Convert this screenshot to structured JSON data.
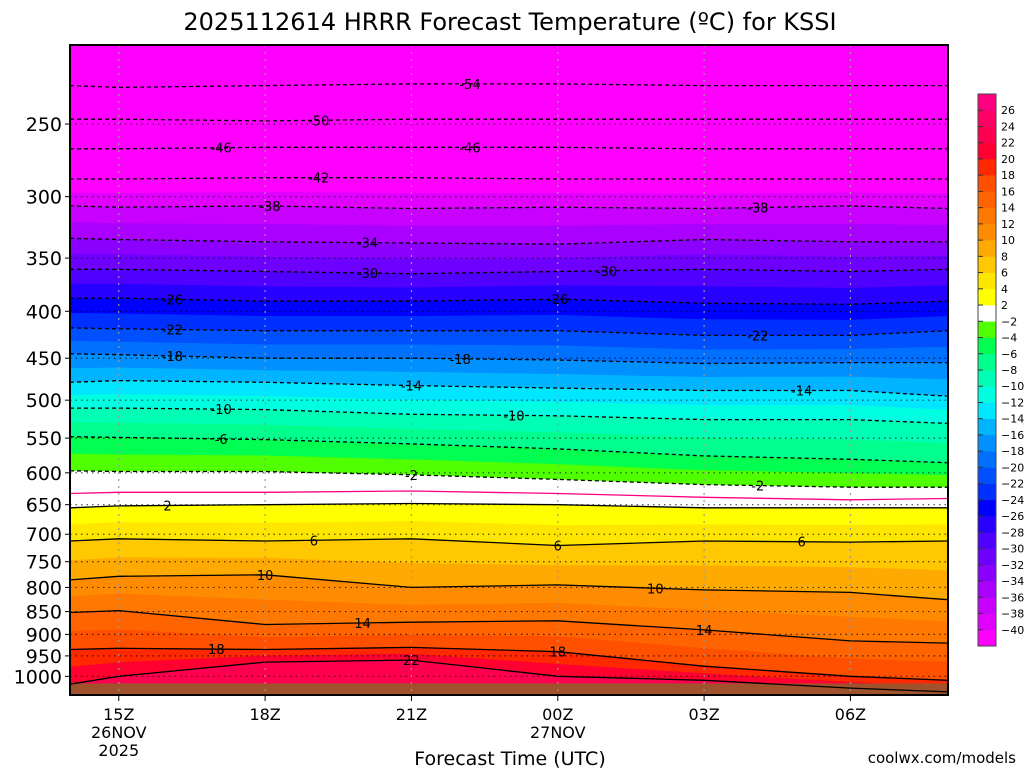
{
  "chart_data": {
    "type": "contour",
    "title": "2025112614 HRRR Forecast Temperature (ºC) for KSSI",
    "xlabel": "Forecast Time (UTC)",
    "ylabel": "",
    "watermark": "coolwx.com/models",
    "x_range_hours": [
      0,
      18
    ],
    "y_range_hpa": [
      205,
      1048
    ],
    "y_scale": "log",
    "y_ticks": [
      250,
      300,
      350,
      400,
      450,
      500,
      550,
      600,
      650,
      700,
      750,
      800,
      850,
      900,
      950,
      1000
    ],
    "x_ticks": [
      {
        "hour": 1,
        "lines": [
          "15Z",
          "26NOV",
          "2025"
        ]
      },
      {
        "hour": 4,
        "lines": [
          "18Z"
        ]
      },
      {
        "hour": 7,
        "lines": [
          "21Z"
        ]
      },
      {
        "hour": 10,
        "lines": [
          "00Z",
          "27NOV"
        ]
      },
      {
        "hour": 13,
        "lines": [
          "03Z"
        ]
      },
      {
        "hour": 16,
        "lines": [
          "06Z"
        ]
      }
    ],
    "surface_pressure_hpa": 1018,
    "surface_color": "#a0522d",
    "hours": [
      0,
      1,
      4,
      7,
      10,
      13,
      16,
      18
    ],
    "isotherms": [
      {
        "temp": -54,
        "pressure": [
          227,
          228,
          227,
          226,
          226,
          227,
          227,
          227
        ]
      },
      {
        "temp": -50,
        "pressure": [
          247,
          247,
          248,
          247,
          247,
          247,
          247,
          247
        ]
      },
      {
        "temp": -46,
        "pressure": [
          266,
          266,
          265,
          265,
          265,
          266,
          266,
          266
        ]
      },
      {
        "temp": -42,
        "pressure": [
          287,
          287,
          286,
          286,
          287,
          287,
          287,
          287
        ]
      },
      {
        "temp": -38,
        "pressure": [
          307,
          308,
          307,
          309,
          308,
          309,
          307,
          309
        ]
      },
      {
        "temp": -34,
        "pressure": [
          333,
          334,
          336,
          337,
          338,
          334,
          336,
          336
        ]
      },
      {
        "temp": -30,
        "pressure": [
          360,
          360,
          362,
          364,
          362,
          360,
          362,
          360
        ]
      },
      {
        "temp": -26,
        "pressure": [
          387,
          387,
          390,
          390,
          388,
          392,
          393,
          390
        ]
      },
      {
        "temp": -22,
        "pressure": [
          417,
          418,
          420,
          420,
          420,
          425,
          425,
          420
        ]
      },
      {
        "temp": -18,
        "pressure": [
          445,
          446,
          450,
          450,
          452,
          456,
          455,
          455
        ]
      },
      {
        "temp": -14,
        "pressure": [
          478,
          476,
          478,
          482,
          485,
          488,
          488,
          495
        ]
      },
      {
        "temp": -10,
        "pressure": [
          510,
          510,
          512,
          518,
          520,
          525,
          525,
          530
        ]
      },
      {
        "temp": -6,
        "pressure": [
          548,
          549,
          552,
          558,
          565,
          575,
          580,
          585
        ]
      },
      {
        "temp": -2,
        "pressure": [
          597,
          598,
          598,
          603,
          610,
          618,
          622,
          622
        ]
      },
      {
        "temp": 0,
        "pressure": [
          632,
          630,
          630,
          628,
          632,
          638,
          642,
          640
        ]
      },
      {
        "temp": 2,
        "pressure": [
          655,
          652,
          650,
          648,
          650,
          655,
          655,
          655
        ]
      },
      {
        "temp": 6,
        "pressure": [
          712,
          708,
          712,
          708,
          720,
          712,
          714,
          712
        ]
      },
      {
        "temp": 10,
        "pressure": [
          785,
          778,
          775,
          800,
          795,
          805,
          810,
          825
        ]
      },
      {
        "temp": 14,
        "pressure": [
          852,
          848,
          878,
          873,
          870,
          890,
          915,
          920
        ]
      },
      {
        "temp": 18,
        "pressure": [
          935,
          932,
          935,
          930,
          940,
          975,
          1000,
          1010
        ]
      },
      {
        "temp": 22,
        "pressure": [
          1020,
          1000,
          965,
          960,
          1000,
          1010,
          1030,
          1040
        ]
      }
    ],
    "contour_labels": [
      {
        "text": "-54",
        "temp": -54,
        "hour": 8.2
      },
      {
        "text": "-50",
        "temp": -50,
        "hour": 5.1
      },
      {
        "text": "-46",
        "temp": -46,
        "hour": 3.1
      },
      {
        "text": "-46",
        "temp": -46,
        "hour": 8.2
      },
      {
        "text": "-42",
        "temp": -42,
        "hour": 5.1
      },
      {
        "text": "-38",
        "temp": -38,
        "hour": 4.1
      },
      {
        "text": "-38",
        "temp": -38,
        "hour": 14.1
      },
      {
        "text": "-34",
        "temp": -34,
        "hour": 6.1
      },
      {
        "text": "-30",
        "temp": -30,
        "hour": 6.1
      },
      {
        "text": "-30",
        "temp": -30,
        "hour": 11.0
      },
      {
        "text": "-26",
        "temp": -26,
        "hour": 2.1
      },
      {
        "text": "-26",
        "temp": -26,
        "hour": 10.0
      },
      {
        "text": "-22",
        "temp": -22,
        "hour": 2.1
      },
      {
        "text": "-22",
        "temp": -22,
        "hour": 14.1
      },
      {
        "text": "-18",
        "temp": -18,
        "hour": 2.1
      },
      {
        "text": "-18",
        "temp": -18,
        "hour": 8.0
      },
      {
        "text": "-14",
        "temp": -14,
        "hour": 7.0
      },
      {
        "text": "-14",
        "temp": -14,
        "hour": 15.0
      },
      {
        "text": "-10",
        "temp": -10,
        "hour": 3.1
      },
      {
        "text": "-10",
        "temp": -10,
        "hour": 9.1
      },
      {
        "text": "-6",
        "temp": -6,
        "hour": 3.1
      },
      {
        "text": "-2",
        "temp": -2,
        "hour": 7.0
      },
      {
        "text": "-2",
        "temp": -2,
        "hour": 14.1
      },
      {
        "text": "2",
        "temp": 2,
        "hour": 2.0
      },
      {
        "text": "6",
        "temp": 6,
        "hour": 5.0
      },
      {
        "text": "6",
        "temp": 6,
        "hour": 10.0
      },
      {
        "text": "6",
        "temp": 6,
        "hour": 15.0
      },
      {
        "text": "10",
        "temp": 10,
        "hour": 4.0
      },
      {
        "text": "10",
        "temp": 10,
        "hour": 12.0
      },
      {
        "text": "14",
        "temp": 14,
        "hour": 6.0
      },
      {
        "text": "14",
        "temp": 14,
        "hour": 13.0
      },
      {
        "text": "18",
        "temp": 18,
        "hour": 3.0
      },
      {
        "text": "18",
        "temp": 18,
        "hour": 10.0
      },
      {
        "text": "22",
        "temp": 22,
        "hour": 7.0
      }
    ],
    "colorbar": {
      "levels": [
        -40,
        -38,
        -36,
        -34,
        -32,
        -30,
        -28,
        -26,
        -24,
        -22,
        -20,
        -18,
        -16,
        -14,
        -12,
        -10,
        -8,
        -6,
        -4,
        -2,
        2,
        4,
        6,
        8,
        10,
        12,
        14,
        16,
        18,
        20,
        22,
        24,
        26
      ],
      "colors": [
        "#ff00ff",
        "#e100ff",
        "#c800ff",
        "#aa00ff",
        "#8c00ff",
        "#6e00ff",
        "#5000ff",
        "#2800ff",
        "#0000ff",
        "#0030ff",
        "#0050ff",
        "#0070ff",
        "#0090ff",
        "#00b4ff",
        "#00e6ff",
        "#00ffe0",
        "#00ffb4",
        "#00ff8c",
        "#00ff50",
        "#50ff00",
        "#ffffff",
        "#ffff00",
        "#ffe600",
        "#ffc800",
        "#ffaa00",
        "#ff8c00",
        "#ff7800",
        "#ff6400",
        "#ff5000",
        "#ff2800",
        "#ff0030",
        "#ff0050",
        "#ff0064",
        "#ff0080"
      ]
    },
    "freezing_line_color": "#ff0080",
    "watermark_color": "#e8322e"
  }
}
